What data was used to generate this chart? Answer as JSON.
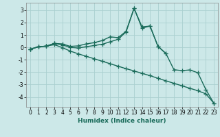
{
  "xlabel": "Humidex (Indice chaleur)",
  "background_color": "#cce8e8",
  "grid_color": "#aad0d0",
  "line_color": "#1a6b5a",
  "x_values": [
    0,
    1,
    2,
    3,
    4,
    5,
    6,
    7,
    8,
    9,
    10,
    11,
    12,
    13,
    14,
    15,
    16,
    17,
    18,
    19,
    20,
    21,
    22,
    23
  ],
  "line1_y": [
    -0.15,
    0.05,
    0.1,
    0.32,
    0.28,
    0.08,
    0.12,
    0.28,
    0.38,
    0.55,
    0.85,
    0.78,
    1.3,
    3.15,
    1.65,
    1.72,
    0.08,
    -0.5,
    -1.8,
    -1.88,
    -1.82,
    -2.05,
    -3.4,
    -4.5
  ],
  "line2_y": [
    -0.15,
    0.05,
    0.1,
    0.32,
    0.2,
    0.0,
    -0.05,
    0.05,
    0.15,
    0.25,
    0.45,
    0.65,
    1.25,
    3.15,
    1.55,
    1.72,
    0.08,
    -0.5,
    null,
    null,
    null,
    null,
    null,
    null
  ],
  "line3_y": [
    -0.15,
    0.05,
    0.1,
    0.22,
    -0.02,
    -0.3,
    -0.52,
    -0.72,
    -0.92,
    -1.12,
    -1.32,
    -1.52,
    -1.72,
    -1.9,
    -2.1,
    -2.28,
    -2.5,
    -2.7,
    -2.9,
    -3.1,
    -3.3,
    -3.5,
    -3.75,
    -4.5
  ],
  "ylim": [
    -4.8,
    3.6
  ],
  "xlim": [
    -0.5,
    23.5
  ],
  "yticks": [
    -4,
    -3,
    -2,
    -1,
    0,
    1,
    2,
    3
  ],
  "xticks": [
    0,
    1,
    2,
    3,
    4,
    5,
    6,
    7,
    8,
    9,
    10,
    11,
    12,
    13,
    14,
    15,
    16,
    17,
    18,
    19,
    20,
    21,
    22,
    23
  ],
  "marker": "+",
  "markersize": 4,
  "linewidth": 1.0
}
